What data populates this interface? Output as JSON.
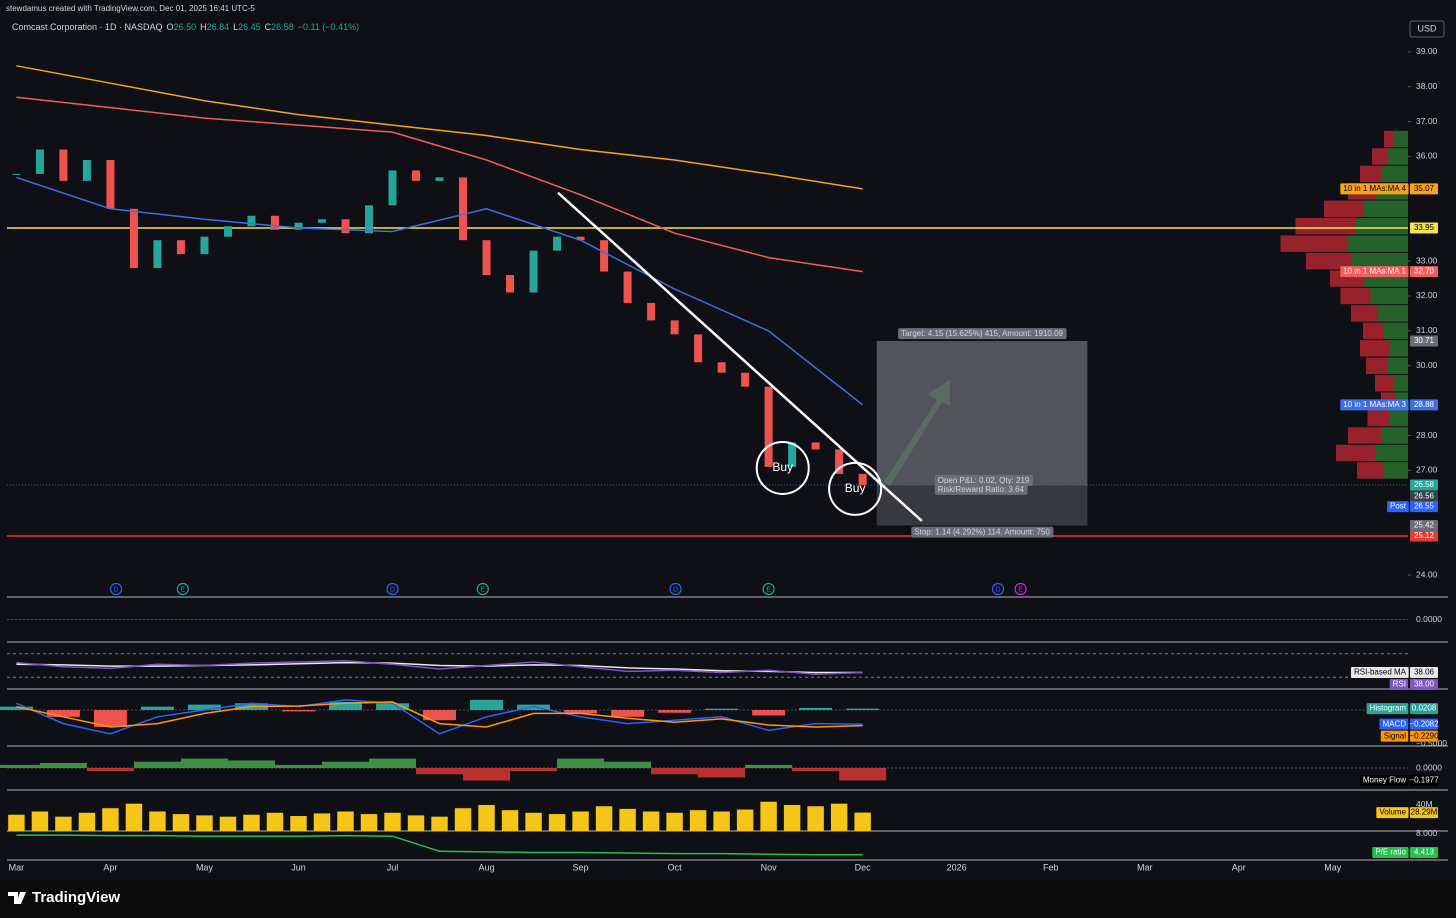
{
  "watermark": "stewdamus created with TradingView.com, Dec 01, 2025 16:41 UTC-5",
  "legend": {
    "symbol": "Comcast Corporation · 1D · NASDAQ",
    "ohlc": [
      [
        "O",
        "26.50"
      ],
      [
        "H",
        "26.84"
      ],
      [
        "L",
        "26.45"
      ],
      [
        "C",
        "26.58"
      ]
    ],
    "change": "−0.11 (−0.41%)"
  },
  "currency": "USD",
  "footer": "TradingView",
  "chart_data": [
    {
      "type": "candlestick",
      "xlim": [
        -0.1,
        14.8
      ],
      "xticks": [
        {
          "value": 0,
          "label": "Mar"
        },
        {
          "value": 1,
          "label": "Apr"
        },
        {
          "value": 2,
          "label": "May"
        },
        {
          "value": 3,
          "label": "Jun"
        },
        {
          "value": 4,
          "label": "Jul"
        },
        {
          "value": 5,
          "label": "Aug"
        },
        {
          "value": 6,
          "label": "Sep"
        },
        {
          "value": 7,
          "label": "Oct"
        },
        {
          "value": 8,
          "label": "Nov"
        },
        {
          "value": 9,
          "label": "Dec"
        },
        {
          "value": 10,
          "label": "2026"
        },
        {
          "value": 11,
          "label": "Feb"
        },
        {
          "value": 12,
          "label": "Mar"
        },
        {
          "value": 13,
          "label": "Apr"
        },
        {
          "value": 14,
          "label": "May"
        }
      ],
      "ylim": [
        23.37,
        39.97
      ],
      "yticks": [
        {
          "value": 39,
          "label": "39.00"
        },
        {
          "value": 38,
          "label": "38.00"
        },
        {
          "value": 37,
          "label": "37.00"
        },
        {
          "value": 36,
          "label": "36.00"
        },
        {
          "value": 33,
          "label": "33.00"
        },
        {
          "value": 32,
          "label": "32.00"
        },
        {
          "value": 31,
          "label": "31.00"
        },
        {
          "value": 30,
          "label": "30.00"
        },
        {
          "value": 28,
          "label": "28.00"
        },
        {
          "value": 27,
          "label": "27.00"
        },
        {
          "value": 24,
          "label": "24.00"
        }
      ],
      "series": [
        {
          "color": "#26a69a",
          "down_color": "#ef5350",
          "x": [
            0,
            0.25,
            0.5,
            0.75,
            1,
            1.25,
            1.5,
            1.75,
            2,
            2.25,
            2.5,
            2.75,
            3,
            3.25,
            3.5,
            3.75,
            4,
            4.25,
            4.5,
            4.75,
            5,
            5.25,
            5.5,
            5.75,
            6,
            6.25,
            6.5,
            6.75,
            7,
            7.25,
            7.5,
            7.75,
            8,
            8.25,
            8.5,
            8.75,
            9
          ],
          "values": [
            35.5,
            36.2,
            35.3,
            35.9,
            34.5,
            32.8,
            33.6,
            33.2,
            33.7,
            34.0,
            34.3,
            33.9,
            34.1,
            34.2,
            33.8,
            34.6,
            35.6,
            35.3,
            35.4,
            33.6,
            32.6,
            32.1,
            33.3,
            33.7,
            33.6,
            32.7,
            31.8,
            31.3,
            30.9,
            30.1,
            29.8,
            29.4,
            27.1,
            27.8,
            27.6,
            26.9,
            26.58
          ]
        },
        {
          "name": "10 in 1 MAs:MA 4",
          "color": "#f7a21b",
          "x": [
            0,
            1,
            2,
            3,
            4,
            5,
            6,
            7,
            8,
            9
          ],
          "values": [
            38.6,
            38.1,
            37.6,
            37.2,
            36.9,
            36.6,
            36.2,
            35.9,
            35.5,
            35.07
          ]
        },
        {
          "name": "10 in 1 MAs:MA 1",
          "color": "#f05d5d",
          "x": [
            0,
            1,
            2,
            3,
            4,
            5,
            6,
            7,
            8,
            9
          ],
          "values": [
            37.7,
            37.4,
            37.1,
            36.9,
            36.7,
            35.9,
            34.9,
            33.8,
            33.1,
            32.7
          ],
          "value_label": "32.70"
        },
        {
          "name": "10 in 1 MAs:MA 3",
          "color": "#3d6fe8",
          "x": [
            0,
            1,
            2,
            3,
            4,
            5,
            6,
            7,
            8,
            9
          ],
          "values": [
            35.4,
            34.5,
            34.2,
            33.95,
            33.85,
            34.5,
            33.6,
            32.2,
            31.0,
            28.88
          ]
        }
      ],
      "levels": [
        {
          "value": 33.95,
          "color": "#f5e34a",
          "text_color": "#000000"
        },
        {
          "value": 26.58,
          "color": "#26a69a",
          "line_color": "#2f5fb0",
          "dotted": true,
          "text_color": "#ffffff"
        },
        {
          "value": 25.12,
          "color": "#e53935",
          "text_color": "#ffffff"
        }
      ],
      "post": {
        "label": "Post",
        "value": 26.55
      },
      "position": {
        "x": [
          9.15,
          11.39
        ],
        "entry": 26.56,
        "target": 30.71,
        "stop": 25.42,
        "target_text": "Target: 4.15 (15.625%) 415, Amount: 1910.09",
        "pnl_text": "Open P&L: 0.02, Qty: 219",
        "rr_text": "Risk/Reward Ratio: 3.64",
        "stop_text": "Stop: 1.14 (4.292%) 114, Amount: 750"
      },
      "trendline": {
        "x": [
          5.76,
          9.63
        ],
        "y": [
          34.96,
          25.55
        ]
      },
      "signals": [
        {
          "x": 8.15,
          "price": 27.07,
          "label": "Buy"
        },
        {
          "x": 8.92,
          "price": 26.47,
          "label": "Buy"
        }
      ],
      "events": [
        {
          "x": 1.06,
          "label": "D",
          "color": "#2962ff"
        },
        {
          "x": 1.77,
          "label": "E",
          "color": "#26a69a"
        },
        {
          "x": 4.0,
          "label": "D",
          "color": "#2962ff"
        },
        {
          "x": 4.96,
          "label": "E",
          "color": "#26a69a"
        },
        {
          "x": 7.01,
          "label": "D",
          "color": "#2962ff"
        },
        {
          "x": 8.0,
          "label": "E",
          "color": "#26a69a"
        },
        {
          "x": 10.44,
          "label": "D",
          "color": "#2962ff"
        },
        {
          "x": 10.68,
          "label": "E",
          "color": "#d02ad8"
        }
      ],
      "profile": {
        "prices": [
          36.5,
          36.0,
          35.5,
          35.0,
          34.5,
          34.0,
          33.5,
          33.0,
          32.5,
          32.0,
          31.5,
          31.0,
          30.5,
          30.0,
          29.5,
          29.0,
          28.5,
          28.0,
          27.5,
          27.0
        ],
        "buy": [
          10,
          14,
          18,
          22,
          30,
          35,
          40,
          38,
          30,
          25,
          20,
          16,
          12,
          14,
          10,
          8,
          12,
          18,
          22,
          16
        ],
        "sell": [
          6,
          10,
          14,
          18,
          26,
          40,
          45,
          30,
          22,
          20,
          18,
          14,
          20,
          14,
          12,
          10,
          15,
          22,
          26,
          18
        ],
        "buy_color": "#2e7d32",
        "sell_color": "#c62834"
      }
    },
    {
      "type": "line",
      "ylim": [
        -1,
        1
      ],
      "yticks": [
        {
          "value": 0,
          "label": "0.0000"
        }
      ],
      "series": []
    },
    {
      "type": "line",
      "ylim": [
        10,
        90
      ],
      "bands": [
        30,
        70
      ],
      "yticks": [],
      "series": [
        {
          "name": "RSI-based MA",
          "color": "#e8e8e8",
          "x": [
            0,
            0.5,
            1,
            1.5,
            2,
            2.5,
            3,
            3.5,
            4,
            4.5,
            5,
            5.5,
            6,
            6.5,
            7,
            7.5,
            8,
            8.5,
            9
          ],
          "values": [
            52,
            51,
            49,
            49,
            50,
            51,
            53,
            55,
            54,
            50,
            49,
            51,
            50,
            46,
            44,
            41,
            40,
            38,
            38.06
          ]
        },
        {
          "name": "RSI",
          "color": "#7e57c2",
          "x": [
            0,
            0.5,
            1,
            1.5,
            2,
            2.5,
            3,
            3.5,
            4,
            4.5,
            5,
            5.5,
            6,
            6.5,
            7,
            7.5,
            8,
            8.5,
            9
          ],
          "values": [
            55,
            48,
            45,
            52,
            50,
            54,
            56,
            58,
            52,
            44,
            50,
            56,
            48,
            40,
            42,
            38,
            42,
            35,
            38
          ],
          "value_label": "38.00"
        }
      ]
    },
    {
      "type": "bar",
      "ylim": [
        -0.53,
        0.31
      ],
      "yticks": [
        {
          "value": -0.5,
          "label": "−0.5000"
        }
      ],
      "series": [
        {
          "name": "Histogram",
          "type": "bar",
          "color": "#26a69a",
          "negative_color": "#ef5350",
          "x": [
            0,
            0.5,
            1,
            1.5,
            2,
            2.5,
            3,
            3.5,
            4,
            4.5,
            5,
            5.5,
            6,
            6.5,
            7,
            7.5,
            8,
            8.5,
            9
          ],
          "values": [
            0.05,
            -0.1,
            -0.25,
            0.05,
            0.08,
            0.1,
            -0.02,
            0.12,
            0.1,
            -0.15,
            0.15,
            0.08,
            -0.05,
            -0.1,
            -0.04,
            0.02,
            -0.08,
            0.03,
            0.0208
          ]
        },
        {
          "name": "MACD",
          "type": "line",
          "color": "#2962ff",
          "x": [
            0,
            0.5,
            1,
            1.5,
            2,
            2.5,
            3,
            3.5,
            4,
            4.5,
            5,
            5.5,
            6,
            6.5,
            7,
            7.5,
            8,
            8.5,
            9
          ],
          "values": [
            0.1,
            -0.2,
            -0.35,
            -0.1,
            0.0,
            0.1,
            0.05,
            0.15,
            0.1,
            -0.35,
            -0.1,
            0.05,
            -0.1,
            -0.2,
            -0.15,
            -0.1,
            -0.3,
            -0.2,
            -0.2082
          ],
          "value_label": "−0.2082"
        },
        {
          "name": "Signal",
          "type": "line",
          "color": "#ff9800",
          "x": [
            0,
            0.5,
            1,
            1.5,
            2,
            2.5,
            3,
            3.5,
            4,
            4.5,
            5,
            5.5,
            6,
            6.5,
            7,
            7.5,
            8,
            8.5,
            9
          ],
          "values": [
            0.05,
            -0.1,
            -0.25,
            -0.2,
            -0.05,
            0.05,
            0.06,
            0.1,
            0.12,
            -0.2,
            -0.25,
            -0.05,
            -0.05,
            -0.12,
            -0.18,
            -0.13,
            -0.22,
            -0.25,
            -0.229
          ],
          "value_label": "−0.2290"
        }
      ]
    },
    {
      "type": "area",
      "ylim": [
        -0.35,
        0.35
      ],
      "yticks": [
        {
          "value": 0,
          "label": "0.0000"
        }
      ],
      "series": [
        {
          "name": "Money Flow",
          "color": "#4caf50",
          "negative_color": "#e53935",
          "badge_color": "#000000",
          "x": [
            0,
            0.5,
            1,
            1.5,
            2,
            2.5,
            3,
            3.5,
            4,
            4.5,
            5,
            5.5,
            6,
            6.5,
            7,
            7.5,
            8,
            8.5,
            9
          ],
          "values": [
            0.05,
            0.08,
            -0.05,
            0.1,
            0.15,
            0.12,
            0.05,
            0.1,
            0.15,
            -0.1,
            -0.2,
            -0.05,
            0.15,
            0.1,
            -0.1,
            -0.15,
            0.05,
            -0.05,
            -0.1977
          ],
          "value_label": "−0.1977"
        }
      ]
    },
    {
      "type": "bar",
      "ylim": [
        0,
        63000000
      ],
      "yticks": [
        {
          "value": 40000000,
          "label": "40M"
        }
      ],
      "series": [
        {
          "name": "Volume",
          "color": "#f5c518",
          "x": [
            0,
            0.25,
            0.5,
            0.75,
            1,
            1.25,
            1.5,
            1.75,
            2,
            2.25,
            2.5,
            2.75,
            3,
            3.25,
            3.5,
            3.75,
            4,
            4.25,
            4.5,
            4.75,
            5,
            5.25,
            5.5,
            5.75,
            6,
            6.25,
            6.5,
            6.75,
            7,
            7.25,
            7.5,
            7.75,
            8,
            8.25,
            8.5,
            8.75,
            9
          ],
          "values": [
            25000000,
            30000000,
            22000000,
            28000000,
            35000000,
            42000000,
            30000000,
            26000000,
            24000000,
            22000000,
            25000000,
            28000000,
            23000000,
            27000000,
            30000000,
            26000000,
            28000000,
            24000000,
            22000000,
            35000000,
            40000000,
            32000000,
            28000000,
            26000000,
            30000000,
            38000000,
            34000000,
            30000000,
            28000000,
            32000000,
            30000000,
            33000000,
            45000000,
            40000000,
            38000000,
            42000000,
            28290000
          ],
          "value_label": "28.29M"
        }
      ]
    },
    {
      "type": "line",
      "ylim": [
        3.5,
        8.5
      ],
      "yticks": [
        {
          "value": 8,
          "label": "8.000"
        }
      ],
      "series": [
        {
          "name": "P/E ratio",
          "color": "#1fc24b",
          "x": [
            0,
            0.5,
            1,
            1.5,
            2,
            2.5,
            3,
            3.5,
            4,
            4.5,
            5,
            5.5,
            6,
            6.5,
            7,
            7.5,
            8,
            8.5,
            9
          ],
          "values": [
            7.8,
            7.8,
            7.7,
            7.7,
            7.6,
            7.6,
            7.6,
            7.7,
            7.6,
            5.0,
            4.9,
            4.8,
            4.8,
            4.7,
            4.6,
            4.6,
            4.5,
            4.4,
            4.413
          ]
        }
      ]
    }
  ]
}
